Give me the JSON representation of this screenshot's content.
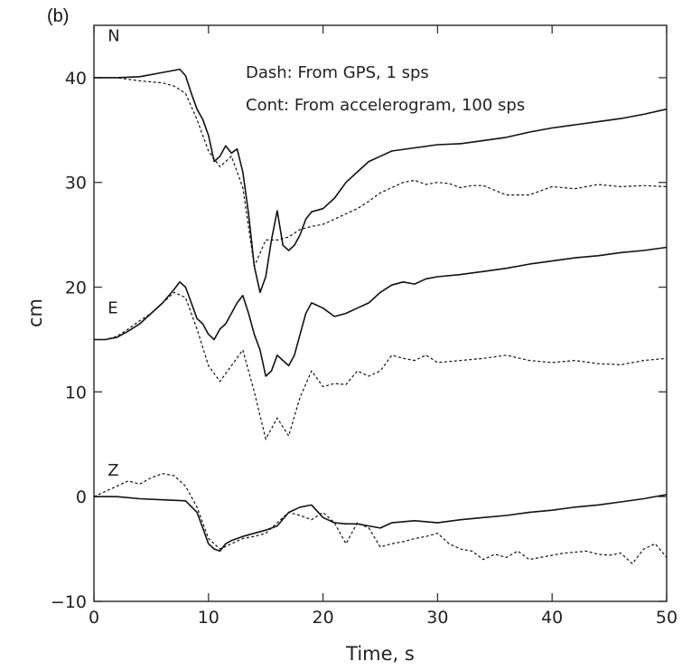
{
  "chart_data": {
    "type": "line",
    "panel_label": "(b)",
    "xlabel": "Time, s",
    "ylabel": "cm",
    "xlim": [
      0,
      50
    ],
    "ylim": [
      -10,
      45
    ],
    "xticks": [
      0,
      10,
      20,
      30,
      40,
      50
    ],
    "yticks": [
      -10,
      0,
      10,
      20,
      30,
      40
    ],
    "xtick_labels": [
      "0",
      "10",
      "20",
      "30",
      "40",
      "50"
    ],
    "ytick_labels": [
      "−10",
      "0",
      "10",
      "20",
      "30",
      "40"
    ],
    "legend": {
      "line1": "Dash: From GPS, 1 sps",
      "line2": "Cont: From accelerogram, 100 sps",
      "placement": "top-right"
    },
    "component_labels": [
      {
        "text": "N",
        "x": 1.2,
        "y": 43.5
      },
      {
        "text": "E",
        "x": 1.2,
        "y": 17.5
      },
      {
        "text": "Z",
        "x": 1.2,
        "y": 2.0
      }
    ],
    "series": [
      {
        "component": "N",
        "style": "continuous",
        "x": [
          0,
          2,
          4,
          6,
          7.5,
          8,
          8.5,
          9,
          9.5,
          10,
          10.5,
          11,
          11.5,
          12,
          12.5,
          13,
          13.5,
          14,
          14.5,
          15,
          15.5,
          16,
          16.5,
          17,
          17.5,
          18,
          18.5,
          19,
          20,
          21,
          22,
          23,
          24,
          25,
          26,
          28,
          30,
          32,
          34,
          36,
          38,
          40,
          42,
          44,
          46,
          48,
          50
        ],
        "y": [
          40,
          40,
          40.1,
          40.5,
          40.8,
          40.2,
          38.5,
          37,
          36,
          34.5,
          32,
          32.5,
          33.5,
          32.8,
          33.2,
          31,
          27,
          22,
          19.5,
          21,
          24.5,
          27.3,
          24,
          23.5,
          24,
          25,
          26.5,
          27.2,
          27.5,
          28.5,
          30,
          31,
          32,
          32.5,
          33,
          33.3,
          33.6,
          33.7,
          34,
          34.3,
          34.8,
          35.2,
          35.5,
          35.8,
          36.1,
          36.5,
          37
        ]
      },
      {
        "component": "N",
        "style": "dash",
        "x": [
          0,
          2,
          4,
          6,
          7,
          8,
          9,
          10,
          11,
          12,
          13,
          14,
          15,
          16,
          17,
          18,
          19,
          20,
          21,
          22,
          23,
          24,
          25,
          26,
          27,
          28,
          29,
          30,
          31,
          32,
          33,
          34,
          36,
          38,
          40,
          42,
          44,
          46,
          48,
          50
        ],
        "y": [
          40,
          40,
          39.7,
          39.5,
          39.2,
          38.5,
          36,
          33,
          31.5,
          32.5,
          29.5,
          22,
          24.5,
          24.5,
          24.8,
          25.5,
          25.8,
          26,
          26.5,
          27,
          27.5,
          28.2,
          29,
          29.5,
          30,
          30.2,
          29.8,
          30,
          29.9,
          29.5,
          29.7,
          29.7,
          28.8,
          28.8,
          29.6,
          29.4,
          29.8,
          29.6,
          29.7,
          29.6
        ]
      },
      {
        "component": "E",
        "style": "continuous",
        "x": [
          0,
          1,
          2,
          3,
          4,
          5,
          6,
          7,
          7.5,
          8,
          8.5,
          9,
          9.5,
          10,
          10.5,
          11,
          11.5,
          12,
          12.5,
          13,
          13.5,
          14,
          14.5,
          15,
          15.5,
          16,
          16.5,
          17,
          17.5,
          18,
          18.5,
          19,
          20,
          21,
          22,
          23,
          24,
          25,
          26,
          27,
          28,
          29,
          30,
          32,
          34,
          36,
          38,
          40,
          42,
          44,
          46,
          48,
          50
        ],
        "y": [
          15,
          15,
          15.2,
          15.8,
          16.5,
          17.5,
          18.5,
          19.8,
          20.5,
          20,
          18.5,
          17,
          16.5,
          15.5,
          15,
          16,
          16.5,
          17.5,
          18.5,
          19.2,
          17.5,
          15.5,
          14,
          11.5,
          12,
          13.5,
          13,
          12.5,
          13.5,
          15.5,
          17.5,
          18.5,
          18,
          17.2,
          17.5,
          18,
          18.5,
          19.5,
          20.2,
          20.5,
          20.3,
          20.8,
          21,
          21.2,
          21.5,
          21.8,
          22.2,
          22.5,
          22.8,
          23,
          23.3,
          23.5,
          23.8
        ]
      },
      {
        "component": "E",
        "style": "dash",
        "x": [
          0,
          1,
          2,
          3,
          4,
          5,
          6,
          7,
          8,
          9,
          10,
          11,
          12,
          13,
          14,
          15,
          16,
          17,
          18,
          19,
          20,
          21,
          22,
          23,
          24,
          25,
          26,
          27,
          28,
          29,
          30,
          32,
          34,
          36,
          38,
          40,
          42,
          44,
          46,
          48,
          50
        ],
        "y": [
          15,
          15,
          15.3,
          16,
          16.8,
          17.5,
          18.5,
          19.5,
          19,
          16,
          12.5,
          11,
          12.5,
          14,
          10,
          5.5,
          7.5,
          5.8,
          9.5,
          12,
          10.5,
          10.8,
          10.7,
          12,
          11.5,
          12,
          13.5,
          13.2,
          13,
          13.5,
          12.8,
          13,
          13.2,
          13.5,
          13,
          12.8,
          13,
          12.7,
          12.6,
          13,
          13.2
        ]
      },
      {
        "component": "Z",
        "style": "continuous",
        "x": [
          0,
          2,
          4,
          6,
          8,
          9,
          9.5,
          10,
          10.5,
          11,
          11.5,
          12,
          13,
          14,
          15,
          16,
          17,
          18,
          19,
          20,
          21,
          22,
          23,
          24,
          25,
          26,
          28,
          30,
          32,
          34,
          36,
          38,
          40,
          42,
          44,
          46,
          48,
          50
        ],
        "y": [
          0,
          0,
          -0.2,
          -0.3,
          -0.4,
          -1.5,
          -3,
          -4.5,
          -5,
          -5.2,
          -4.5,
          -4.2,
          -3.8,
          -3.5,
          -3.2,
          -2.8,
          -1.5,
          -1,
          -0.8,
          -2,
          -2.5,
          -2.6,
          -2.6,
          -2.8,
          -3,
          -2.5,
          -2.3,
          -2.5,
          -2.2,
          -2,
          -1.8,
          -1.5,
          -1.3,
          -1,
          -0.8,
          -0.5,
          -0.2,
          0.2
        ]
      },
      {
        "component": "Z",
        "style": "dash",
        "x": [
          0,
          1,
          2,
          3,
          4,
          5,
          6,
          7,
          8,
          9,
          10,
          11,
          12,
          13,
          14,
          15,
          16,
          17,
          18,
          19,
          20,
          21,
          22,
          23,
          24,
          25,
          26,
          27,
          28,
          29,
          30,
          31,
          32,
          33,
          34,
          35,
          36,
          37,
          38,
          39,
          40,
          41,
          42,
          43,
          44,
          45,
          46,
          47,
          48,
          49,
          50
        ],
        "y": [
          0,
          0.5,
          1,
          1.5,
          1.2,
          1.8,
          2.2,
          2,
          1,
          -1,
          -4,
          -5,
          -4.5,
          -4,
          -3.8,
          -3.5,
          -2.5,
          -1.5,
          -1.8,
          -2.2,
          -1.5,
          -2.5,
          -4.5,
          -2.5,
          -3,
          -4.8,
          -4.5,
          -4.3,
          -4,
          -3.8,
          -3.5,
          -4.5,
          -5,
          -5.2,
          -6,
          -5.5,
          -5.8,
          -5.2,
          -6,
          -5.8,
          -5.6,
          -5.4,
          -5.3,
          -5.2,
          -5.5,
          -5.6,
          -5.4,
          -6.4,
          -5,
          -4.5,
          -5.8
        ]
      }
    ]
  }
}
